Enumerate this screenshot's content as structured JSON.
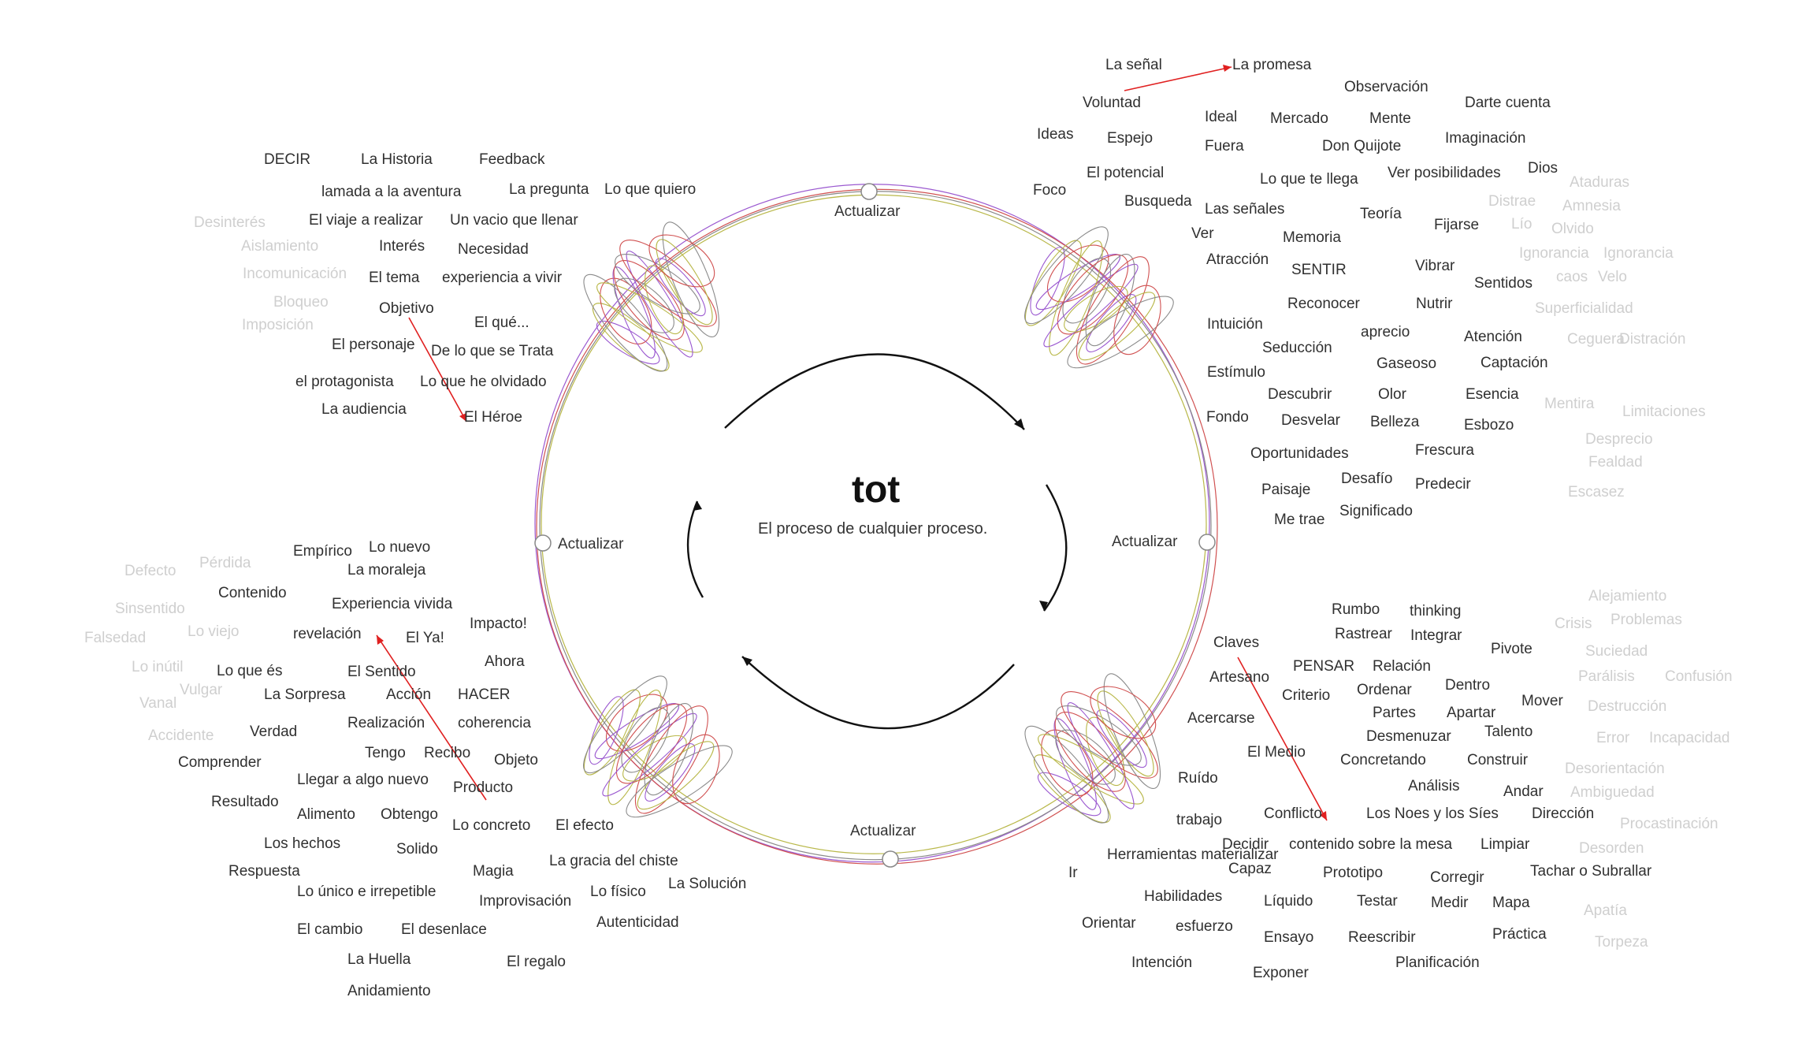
{
  "center": {
    "title": "tot",
    "subtitle": "El proceso de cualquier proceso."
  },
  "cycle_labels": {
    "top": "Actualizar",
    "right": "Actualizar",
    "bottom": "Actualizar",
    "left": "Actualizar"
  },
  "colors": {
    "text": "#303030",
    "faded": "#cfcfcf",
    "arrow": "#e02020",
    "ring_purple": "#9b59d0",
    "ring_olive": "#b9b84a",
    "ring_gray": "#8a8a8a",
    "ring_red": "#d05050"
  },
  "quadrants": {
    "top_left": {
      "words": [
        "DECIR",
        "La Historia",
        "Feedback",
        "lamada a la aventura",
        "La pregunta",
        "Lo que quiero",
        "El viaje a realizar",
        "Un vacio que llenar",
        "Interés",
        "Necesidad",
        "El tema",
        "experiencia a vivir",
        "Objetivo",
        "El qué...",
        "El personaje",
        "De lo que se Trata",
        "el protagonista",
        "Lo que he olvidado",
        "La audiencia",
        "El Héroe"
      ],
      "faded": [
        "Desinterés",
        "Aislamiento",
        "Incomunicación",
        "Bloqueo",
        "Imposición"
      ]
    },
    "top_right": {
      "words": [
        "La señal",
        "La promesa",
        "Observación",
        "Voluntad",
        "Ideal",
        "Mercado",
        "Mente",
        "Darte cuenta",
        "Ideas",
        "Espejo",
        "Fuera",
        "Don Quijote",
        "Imaginación",
        "El potencial",
        "Lo que te llega",
        "Ver posibilidades",
        "Dios",
        "Foco",
        "Busqueda",
        "Las señales",
        "Teoría",
        "Fijarse",
        "Ver",
        "Memoria",
        "Atracción",
        "SENTIR",
        "Vibrar",
        "Sentidos",
        "Reconocer",
        "Nutrir",
        "Intuición",
        "aprecio",
        "Atención",
        "Seducción",
        "Gaseoso",
        "Captación",
        "Estímulo",
        "Descubrir",
        "Olor",
        "Esencia",
        "Fondo",
        "Desvelar",
        "Belleza",
        "Esbozo",
        "Oportunidades",
        "Frescura",
        "Paisaje",
        "Desafío",
        "Predecir",
        "Significado",
        "Me trae"
      ],
      "faded": [
        "Ataduras",
        "Distrae",
        "Amnesia",
        "Lío",
        "Olvido",
        "Ignorancia",
        "Ignorancia",
        "caos",
        "Velo",
        "Superficialidad",
        "Distración",
        "Ceguera",
        "Mentira",
        "Limitaciones",
        "Desprecio",
        "Fealdad",
        "Escasez"
      ]
    },
    "bottom_left": {
      "words": [
        "Empírico",
        "Lo nuevo",
        "La moraleja",
        "Contenido",
        "Experiencia vivida",
        "Impacto!",
        "revelación",
        "El Ya!",
        "Lo que és",
        "El Sentido",
        "Ahora",
        "La Sorpresa",
        "Acción",
        "HACER",
        "Realización",
        "coherencia",
        "Verdad",
        "Tengo",
        "Recibo",
        "Objeto",
        "Comprender",
        "Llegar a algo nuevo",
        "Producto",
        "Resultado",
        "Alimento",
        "Obtengo",
        "Lo concreto",
        "El efecto",
        "Los hechos",
        "Solido",
        "Respuesta",
        "Magia",
        "La gracia del chiste",
        "Lo único e irrepetible",
        "Improvisación",
        "Lo físico",
        "La Solución",
        "El cambio",
        "El desenlace",
        "Autenticidad",
        "La Huella",
        "El regalo",
        "Anidamiento"
      ],
      "faded": [
        "Defecto",
        "Pérdida",
        "Sinsentido",
        "Falsedad",
        "Lo viejo",
        "Lo inútil",
        "Vulgar",
        "Vanal",
        "Accidente"
      ]
    },
    "bottom_right": {
      "words": [
        "Rumbo",
        "thinking",
        "Rastrear",
        "Integrar",
        "Claves",
        "Pivote",
        "PENSAR",
        "Relación",
        "Artesano",
        "Dentro",
        "Criterio",
        "Ordenar",
        "Partes",
        "Apartar",
        "Mover",
        "Acercarse",
        "Desmenuzar",
        "Talento",
        "El Medio",
        "Concretando",
        "Construir",
        "Ruído",
        "Análisis",
        "Andar",
        "Conflicto",
        "Los Noes y los Síes",
        "Dirección",
        "trabajo",
        "Decidir",
        "contenido sobre la mesa",
        "Limpiar",
        "Herramientas materializar",
        "Capaz",
        "Prototipo",
        "Corregir",
        "Tachar o Subrallar",
        "Ir",
        "Habilidades",
        "Líquido",
        "Testar",
        "Medir",
        "Mapa",
        "Orientar",
        "esfuerzo",
        "Ensayo",
        "Reescribir",
        "Práctica",
        "Intención",
        "Planificación",
        "Exponer"
      ],
      "faded": [
        "Alejamiento",
        "Crisis",
        "Problemas",
        "Suciedad",
        "Parálisis",
        "Confusión",
        "Destrucción",
        "Error",
        "Incapacidad",
        "Desorientación",
        "Ambiguedad",
        "Procastinación",
        "Desorden",
        "Apatía",
        "Torpeza"
      ]
    }
  }
}
